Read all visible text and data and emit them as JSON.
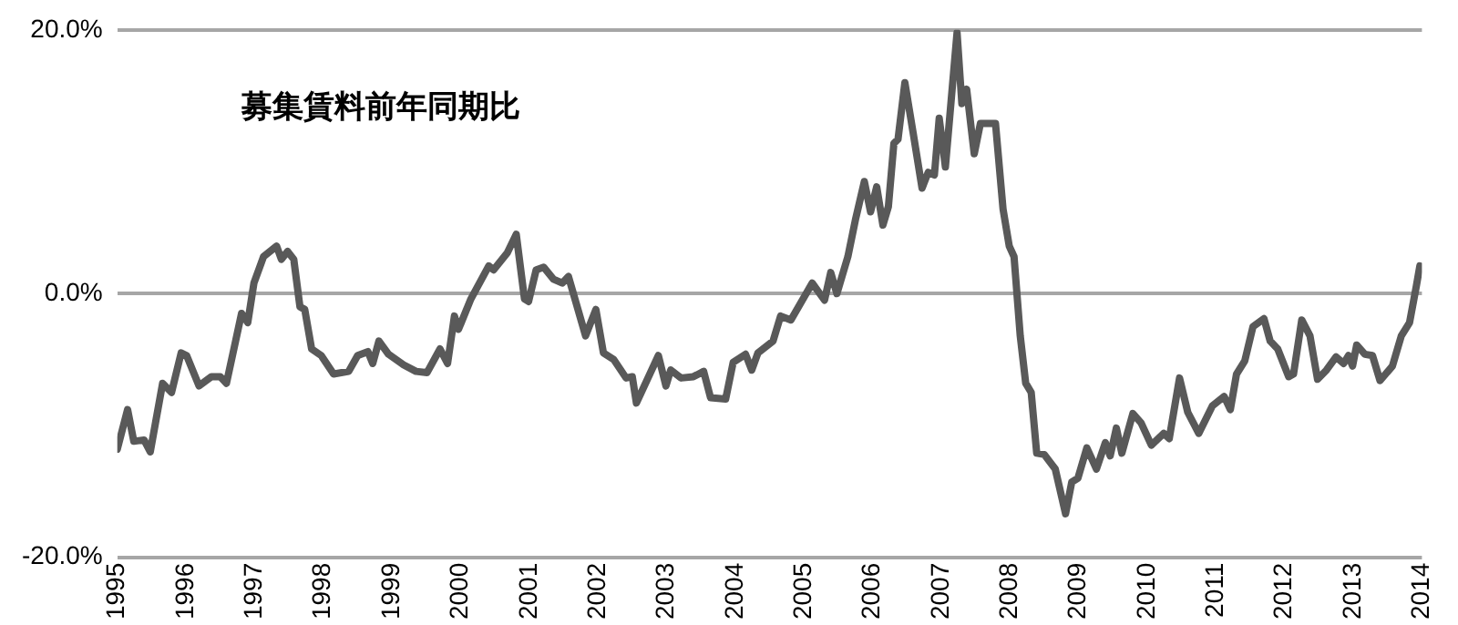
{
  "chart_data": {
    "type": "line",
    "title": "募集賃料前年同期比",
    "xlim": [
      1995,
      2014
    ],
    "xticks": [
      1995,
      1996,
      1997,
      1998,
      1999,
      2000,
      2001,
      2002,
      2003,
      2004,
      2005,
      2006,
      2007,
      2008,
      2009,
      2010,
      2011,
      2012,
      2013,
      2014
    ],
    "ylim": [
      -20,
      20
    ],
    "yticks": [
      {
        "value": -20,
        "label": "-20.0%"
      },
      {
        "value": 0,
        "label": "0.0%"
      },
      {
        "value": 20,
        "label": "20.0%"
      }
    ],
    "grid": "y",
    "legend": false,
    "marker": "none",
    "line_style": "solid",
    "series": [
      {
        "color": "#595959",
        "x": [
          1995.0,
          1995.15,
          1995.24,
          1995.39,
          1995.48,
          1995.66,
          1995.79,
          1995.93,
          1996.01,
          1996.19,
          1996.37,
          1996.5,
          1996.59,
          1996.81,
          1996.9,
          1996.99,
          1997.13,
          1997.32,
          1997.39,
          1997.48,
          1997.57,
          1997.66,
          1997.73,
          1997.83,
          1997.97,
          1998.15,
          1998.37,
          1998.5,
          1998.65,
          1998.72,
          1998.81,
          1998.95,
          1999.17,
          1999.35,
          1999.51,
          1999.7,
          1999.81,
          1999.91,
          1999.97,
          2000.15,
          2000.41,
          2000.48,
          2000.68,
          2000.81,
          2000.93,
          2000.99,
          2001.1,
          2001.21,
          2001.35,
          2001.48,
          2001.57,
          2001.82,
          2001.97,
          2002.08,
          2002.23,
          2002.41,
          2002.5,
          2002.56,
          2002.88,
          2002.99,
          2003.06,
          2003.21,
          2003.39,
          2003.54,
          2003.64,
          2003.86,
          2003.97,
          2004.15,
          2004.24,
          2004.33,
          2004.55,
          2004.66,
          2004.81,
          2005.12,
          2005.3,
          2005.39,
          2005.48,
          2005.64,
          2005.75,
          2005.88,
          2005.97,
          2006.06,
          2006.15,
          2006.23,
          2006.31,
          2006.37,
          2006.47,
          2006.59,
          2006.72,
          2006.81,
          2006.9,
          2006.97,
          2007.06,
          2007.23,
          2007.3,
          2007.37,
          2007.48,
          2007.57,
          2007.79,
          2007.9,
          2007.99,
          2008.06,
          2008.15,
          2008.23,
          2008.31,
          2008.39,
          2008.5,
          2008.66,
          2008.81,
          2008.9,
          2008.99,
          2009.12,
          2009.26,
          2009.39,
          2009.46,
          2009.55,
          2009.63,
          2009.79,
          2009.91,
          2010.06,
          2010.24,
          2010.32,
          2010.47,
          2010.59,
          2010.75,
          2010.95,
          2011.12,
          2011.21,
          2011.3,
          2011.42,
          2011.54,
          2011.7,
          2011.79,
          2011.9,
          2012.06,
          2012.13,
          2012.25,
          2012.37,
          2012.48,
          2012.61,
          2012.75,
          2012.86,
          2012.93,
          2012.99,
          2013.05,
          2013.17,
          2013.28,
          2013.39,
          2013.57,
          2013.7,
          2013.82,
          2013.92,
          2013.97
        ],
        "values": [
          -11.8,
          -8.8,
          -11.2,
          -11.1,
          -12.0,
          -6.8,
          -7.5,
          -4.5,
          -4.7,
          -7.0,
          -6.3,
          -6.3,
          -6.8,
          -1.5,
          -2.2,
          0.8,
          2.8,
          3.6,
          2.6,
          3.2,
          2.6,
          -1.0,
          -1.2,
          -4.2,
          -4.7,
          -6.1,
          -5.9,
          -4.7,
          -4.4,
          -5.3,
          -3.6,
          -4.6,
          -5.4,
          -5.9,
          -6.0,
          -4.2,
          -5.3,
          -1.7,
          -2.7,
          -0.4,
          2.1,
          1.8,
          3.1,
          4.5,
          -0.4,
          -0.6,
          1.8,
          2.0,
          1.1,
          0.8,
          1.3,
          -3.2,
          -1.2,
          -4.5,
          -5.0,
          -6.4,
          -6.3,
          -8.3,
          -4.7,
          -7.0,
          -5.8,
          -6.4,
          -6.3,
          -5.9,
          -7.9,
          -8.0,
          -5.2,
          -4.6,
          -5.8,
          -4.5,
          -3.6,
          -1.7,
          -2.0,
          0.8,
          -0.5,
          1.6,
          0.0,
          2.8,
          5.6,
          8.5,
          6.2,
          8.1,
          5.2,
          6.6,
          11.4,
          11.7,
          16.0,
          12.2,
          8.0,
          9.2,
          9.0,
          13.3,
          9.6,
          19.8,
          14.4,
          15.5,
          10.6,
          12.9,
          12.9,
          6.4,
          3.6,
          2.8,
          -3.2,
          -6.8,
          -7.5,
          -12.1,
          -12.2,
          -13.3,
          -16.7,
          -14.3,
          -14.0,
          -11.7,
          -13.3,
          -11.3,
          -12.3,
          -10.2,
          -12.1,
          -9.1,
          -9.8,
          -11.5,
          -10.6,
          -11.0,
          -6.4,
          -9.0,
          -10.6,
          -8.5,
          -7.8,
          -8.8,
          -6.1,
          -5.1,
          -2.5,
          -1.9,
          -3.6,
          -4.2,
          -6.3,
          -6.1,
          -2.0,
          -3.2,
          -6.5,
          -5.8,
          -4.8,
          -5.3,
          -4.7,
          -5.5,
          -3.9,
          -4.6,
          -4.7,
          -6.6,
          -5.5,
          -3.2,
          -2.2,
          0.6,
          2.1
        ]
      }
    ]
  }
}
